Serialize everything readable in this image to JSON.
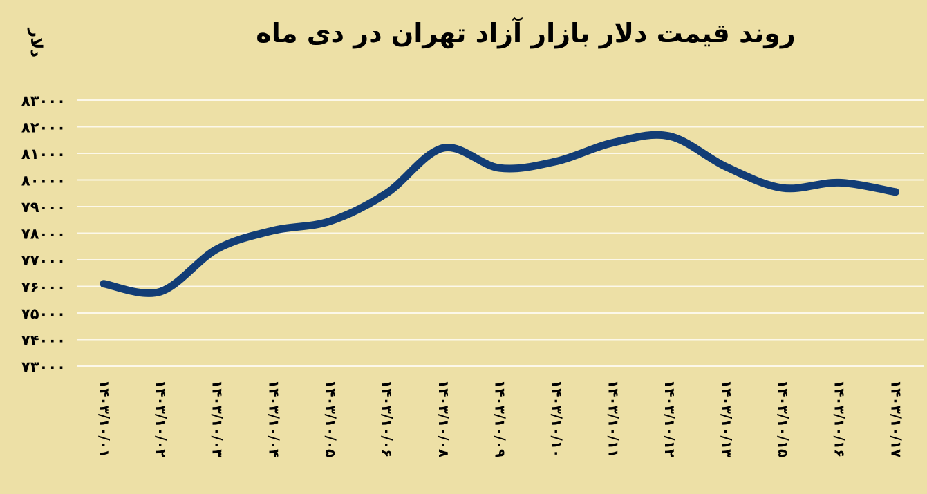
{
  "colors": {
    "background": "#ede0a6",
    "line": "#123d76",
    "grid": "#fcf8ea",
    "text": "#000000"
  },
  "chart_data": {
    "type": "line",
    "title": "روند قیمت دلار بازار آزاد تهران در دی ماه",
    "ylabel": "دلار",
    "xlabel": "",
    "legend": "none",
    "grid": "horizontal",
    "ylim": [
      73000,
      83000
    ],
    "categories": [
      "۱۴۰۳/۱۰/۰۱",
      "۱۴۰۳/۱۰/۰۲",
      "۱۴۰۳/۱۰/۰۳",
      "۱۴۰۳/۱۰/۰۴",
      "۱۴۰۳/۱۰/۰۵",
      "۱۴۰۳/۱۰/۰۶",
      "۱۴۰۳/۱۰/۰۸",
      "۱۴۰۳/۱۰/۰۹",
      "۱۴۰۳/۱۰/۱۰",
      "۱۴۰۳/۱۰/۱۱",
      "۱۴۰۳/۱۰/۱۲",
      "۱۴۰۳/۱۰/۱۳",
      "۱۴۰۳/۱۰/۱۵",
      "۱۴۰۳/۱۰/۱۶",
      "۱۴۰۳/۱۰/۱۷"
    ],
    "values": [
      76100,
      75800,
      77400,
      78100,
      78450,
      79500,
      81200,
      80450,
      80700,
      81400,
      81650,
      80500,
      79700,
      79900,
      79550
    ],
    "y_ticks": [
      {
        "value": 83000,
        "label": "۸۳۰۰۰"
      },
      {
        "value": 82000,
        "label": "۸۲۰۰۰"
      },
      {
        "value": 81000,
        "label": "۸۱۰۰۰"
      },
      {
        "value": 80000,
        "label": "۸۰۰۰۰"
      },
      {
        "value": 79000,
        "label": "۷۹۰۰۰"
      },
      {
        "value": 78000,
        "label": "۷۸۰۰۰"
      },
      {
        "value": 77000,
        "label": "۷۷۰۰۰"
      },
      {
        "value": 76000,
        "label": "۷۶۰۰۰"
      },
      {
        "value": 75000,
        "label": "۷۵۰۰۰"
      },
      {
        "value": 74000,
        "label": "۷۴۰۰۰"
      },
      {
        "value": 73000,
        "label": "۷۳۰۰۰"
      }
    ]
  }
}
